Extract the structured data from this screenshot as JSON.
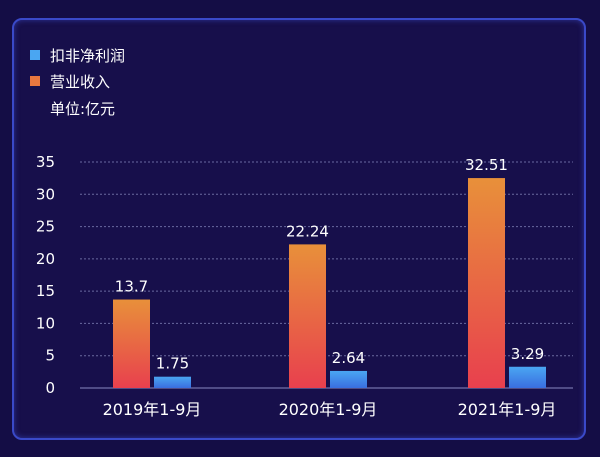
{
  "colors": {
    "background": "#140d45",
    "border": "#3a49c8",
    "revenue_top": "#e8903a",
    "revenue_bottom": "#e8404e",
    "profit_top": "#4aa6f2",
    "profit_bottom": "#3a6ee0",
    "gridline": "#6a6aa0"
  },
  "legend": {
    "items": [
      {
        "label": "扣非净利润",
        "color": "#4aa6f2"
      },
      {
        "label": "营业收入",
        "color": "#e8773f"
      }
    ],
    "unit": "单位:亿元"
  },
  "chart_data": {
    "type": "bar",
    "categories": [
      "2019年1-9月",
      "2020年1-9月",
      "2021年1-9月"
    ],
    "series": [
      {
        "name": "营业收入",
        "values": [
          13.7,
          22.24,
          32.51
        ],
        "labels": [
          "13.7",
          "22.24",
          "32.51"
        ]
      },
      {
        "name": "扣非净利润",
        "values": [
          1.75,
          2.64,
          3.29
        ],
        "labels": [
          "1.75",
          "2.64",
          "3.29"
        ]
      }
    ],
    "ylim": [
      0,
      35
    ],
    "yticks": [
      0,
      5,
      10,
      15,
      20,
      25,
      30,
      35
    ],
    "grid": true,
    "legend_position": "top-left"
  }
}
